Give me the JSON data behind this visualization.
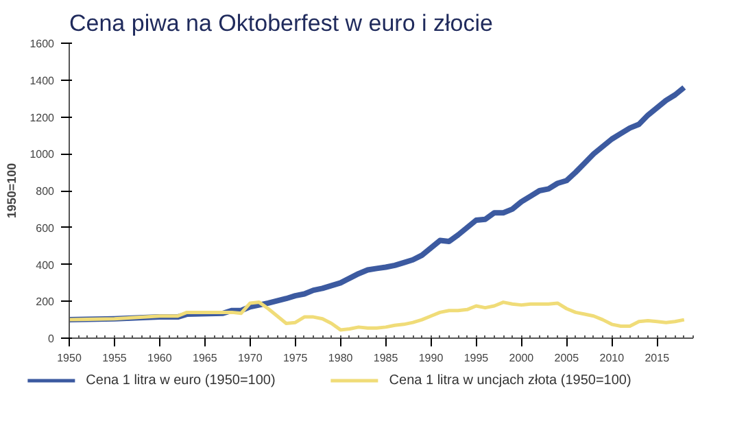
{
  "chart_data": {
    "type": "line",
    "title": "Cena piwa na Oktoberfest w euro i złocie",
    "ylabel": "1950=100",
    "x": [
      1950,
      1955,
      1960,
      1962,
      1963,
      1967,
      1968,
      1969,
      1970,
      1971,
      1972,
      1974,
      1975,
      1976,
      1977,
      1978,
      1979,
      1980,
      1981,
      1982,
      1983,
      1984,
      1985,
      1986,
      1987,
      1988,
      1989,
      1990,
      1991,
      1992,
      1993,
      1994,
      1995,
      1996,
      1997,
      1998,
      1999,
      2000,
      2001,
      2002,
      2003,
      2004,
      2005,
      2006,
      2007,
      2008,
      2009,
      2010,
      2011,
      2012,
      2013,
      2014,
      2015,
      2016,
      2017,
      2018
    ],
    "series": [
      {
        "name": "Cena 1 litra w euro (1950=100)",
        "color": "#3c5aa0",
        "values": [
          100,
          105,
          115,
          115,
          130,
          135,
          150,
          150,
          170,
          180,
          190,
          215,
          230,
          240,
          260,
          270,
          285,
          300,
          325,
          350,
          370,
          378,
          385,
          395,
          410,
          425,
          450,
          490,
          530,
          525,
          560,
          600,
          640,
          645,
          680,
          680,
          700,
          740,
          770,
          800,
          810,
          840,
          855,
          900,
          950,
          1000,
          1040,
          1080,
          1110,
          1140,
          1160,
          1210,
          1250,
          1290,
          1320,
          1360
        ]
      },
      {
        "name": "Cena 1 litra w uncjach złota (1950=100)",
        "color": "#f0dc78",
        "values": [
          100,
          105,
          120,
          120,
          140,
          140,
          140,
          135,
          190,
          195,
          160,
          80,
          85,
          115,
          115,
          105,
          80,
          45,
          50,
          60,
          55,
          55,
          60,
          70,
          75,
          85,
          100,
          120,
          140,
          150,
          150,
          155,
          175,
          165,
          175,
          195,
          185,
          180,
          185,
          185,
          185,
          190,
          160,
          140,
          130,
          120,
          100,
          75,
          65,
          65,
          90,
          95,
          90,
          85,
          90,
          100
        ]
      }
    ],
    "xlim": [
      1950,
      2019
    ],
    "xticks": [
      1950,
      1955,
      1960,
      1965,
      1970,
      1975,
      1980,
      1985,
      1990,
      1995,
      2000,
      2005,
      2010,
      2015
    ],
    "ylim": [
      0,
      1600
    ],
    "yticks": [
      0,
      200,
      400,
      600,
      800,
      1000,
      1200,
      1400,
      1600
    ],
    "grid": false,
    "legend": "bottom"
  }
}
